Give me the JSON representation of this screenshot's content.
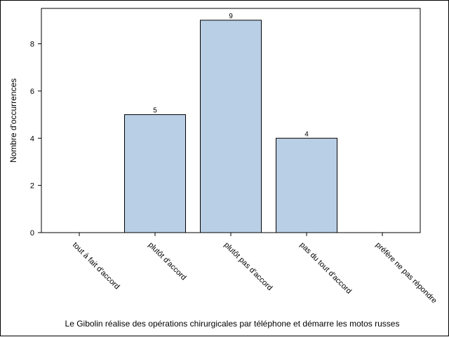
{
  "chart_data": {
    "type": "bar",
    "categories": [
      "tout à fait d'accord",
      "plutôt d'accord",
      "plutôt pas d'accord",
      "pas du tout d'accord",
      "préfère ne pas répondre"
    ],
    "values": [
      0,
      5,
      9,
      4,
      0
    ],
    "data_labels": [
      "",
      "5",
      "9",
      "4",
      ""
    ],
    "title": "",
    "xlabel": "Le Gibolin réalise des opérations chirurgicales par téléphone et démarre les motos russes",
    "ylabel": "Nombre d'occurrences",
    "ylim": [
      0,
      9.5
    ],
    "yticks": [
      "0",
      "2",
      "4",
      "6",
      "8"
    ],
    "grid": false,
    "legend": "none",
    "bar_color": "#b9cfe6",
    "bar_edge_color": "#000000"
  }
}
